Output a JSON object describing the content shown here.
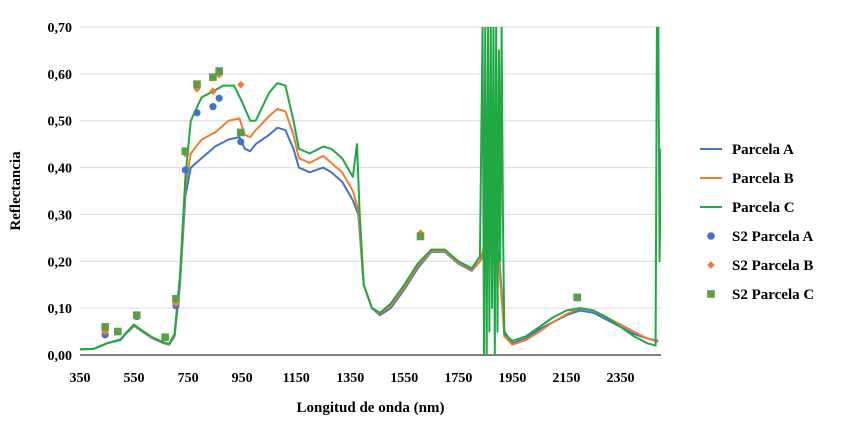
{
  "chart_data": {
    "type": "line",
    "title": "",
    "xlabel": "Longitud de onda (nm)",
    "ylabel": "Reflectancia",
    "xlim": [
      350,
      2500
    ],
    "ylim": [
      0,
      0.7
    ],
    "x_ticks": [
      350,
      550,
      750,
      950,
      1150,
      1350,
      1550,
      1750,
      1950,
      2150,
      2350
    ],
    "x_tick_labels": [
      "350",
      "550",
      "750",
      "950",
      "1150",
      "1350",
      "1550",
      "1750",
      "1950",
      "2150",
      "2350"
    ],
    "y_ticks": [
      0,
      0.1,
      0.2,
      0.3,
      0.4,
      0.5,
      0.6,
      0.7
    ],
    "y_tick_labels": [
      "0,00",
      "0,10",
      "0,20",
      "0,30",
      "0,40",
      "0,50",
      "0,60",
      "0,70"
    ],
    "grid": "horizontal",
    "legend_position": "right",
    "series": [
      {
        "name": "Parcela A",
        "kind": "line",
        "color": "#4472c4",
        "points": [
          [
            350,
            0.012
          ],
          [
            400,
            0.013
          ],
          [
            450,
            0.025
          ],
          [
            500,
            0.032
          ],
          [
            520,
            0.045
          ],
          [
            550,
            0.062
          ],
          [
            580,
            0.05
          ],
          [
            620,
            0.035
          ],
          [
            660,
            0.025
          ],
          [
            680,
            0.022
          ],
          [
            700,
            0.04
          ],
          [
            720,
            0.15
          ],
          [
            740,
            0.34
          ],
          [
            760,
            0.4
          ],
          [
            800,
            0.42
          ],
          [
            850,
            0.445
          ],
          [
            900,
            0.46
          ],
          [
            940,
            0.465
          ],
          [
            960,
            0.44
          ],
          [
            980,
            0.435
          ],
          [
            1000,
            0.45
          ],
          [
            1050,
            0.47
          ],
          [
            1080,
            0.485
          ],
          [
            1110,
            0.48
          ],
          [
            1140,
            0.44
          ],
          [
            1160,
            0.4
          ],
          [
            1200,
            0.39
          ],
          [
            1250,
            0.4
          ],
          [
            1280,
            0.39
          ],
          [
            1320,
            0.37
          ],
          [
            1360,
            0.33
          ],
          [
            1380,
            0.3
          ],
          [
            1400,
            0.15
          ],
          [
            1430,
            0.1
          ],
          [
            1460,
            0.085
          ],
          [
            1500,
            0.1
          ],
          [
            1550,
            0.14
          ],
          [
            1600,
            0.185
          ],
          [
            1650,
            0.22
          ],
          [
            1700,
            0.22
          ],
          [
            1750,
            0.195
          ],
          [
            1800,
            0.18
          ],
          [
            1830,
            0.2
          ],
          [
            1850,
            0.22
          ],
          [
            1900,
            0.22
          ],
          [
            1920,
            0.05
          ],
          [
            1950,
            0.025
          ],
          [
            2000,
            0.035
          ],
          [
            2050,
            0.055
          ],
          [
            2100,
            0.07
          ],
          [
            2150,
            0.085
          ],
          [
            2200,
            0.095
          ],
          [
            2250,
            0.09
          ],
          [
            2300,
            0.075
          ],
          [
            2350,
            0.06
          ],
          [
            2400,
            0.045
          ],
          [
            2450,
            0.035
          ],
          [
            2490,
            0.03
          ]
        ]
      },
      {
        "name": "Parcela B",
        "kind": "line",
        "color": "#ed7d31",
        "points": [
          [
            350,
            0.012
          ],
          [
            400,
            0.013
          ],
          [
            450,
            0.025
          ],
          [
            500,
            0.033
          ],
          [
            520,
            0.046
          ],
          [
            550,
            0.063
          ],
          [
            580,
            0.051
          ],
          [
            620,
            0.036
          ],
          [
            660,
            0.026
          ],
          [
            680,
            0.023
          ],
          [
            700,
            0.042
          ],
          [
            720,
            0.16
          ],
          [
            740,
            0.36
          ],
          [
            760,
            0.43
          ],
          [
            800,
            0.46
          ],
          [
            850,
            0.475
          ],
          [
            900,
            0.5
          ],
          [
            940,
            0.505
          ],
          [
            960,
            0.47
          ],
          [
            980,
            0.465
          ],
          [
            1000,
            0.48
          ],
          [
            1050,
            0.51
          ],
          [
            1080,
            0.525
          ],
          [
            1110,
            0.52
          ],
          [
            1140,
            0.47
          ],
          [
            1160,
            0.42
          ],
          [
            1200,
            0.41
          ],
          [
            1250,
            0.425
          ],
          [
            1280,
            0.41
          ],
          [
            1320,
            0.39
          ],
          [
            1360,
            0.35
          ],
          [
            1380,
            0.31
          ],
          [
            1400,
            0.15
          ],
          [
            1430,
            0.1
          ],
          [
            1460,
            0.088
          ],
          [
            1500,
            0.105
          ],
          [
            1550,
            0.145
          ],
          [
            1600,
            0.19
          ],
          [
            1650,
            0.222
          ],
          [
            1700,
            0.222
          ],
          [
            1750,
            0.197
          ],
          [
            1800,
            0.182
          ],
          [
            1830,
            0.2
          ],
          [
            1850,
            0.24
          ],
          [
            1870,
            0.25
          ],
          [
            1900,
            0.2
          ],
          [
            1920,
            0.04
          ],
          [
            1950,
            0.022
          ],
          [
            2000,
            0.032
          ],
          [
            2050,
            0.05
          ],
          [
            2100,
            0.07
          ],
          [
            2150,
            0.087
          ],
          [
            2200,
            0.1
          ],
          [
            2250,
            0.095
          ],
          [
            2300,
            0.08
          ],
          [
            2350,
            0.065
          ],
          [
            2400,
            0.05
          ],
          [
            2450,
            0.035
          ],
          [
            2490,
            0.028
          ]
        ]
      },
      {
        "name": "Parcela C",
        "kind": "line",
        "color": "#1fa843",
        "points": [
          [
            350,
            0.012
          ],
          [
            400,
            0.013
          ],
          [
            450,
            0.025
          ],
          [
            500,
            0.033
          ],
          [
            520,
            0.047
          ],
          [
            550,
            0.065
          ],
          [
            580,
            0.052
          ],
          [
            620,
            0.037
          ],
          [
            660,
            0.027
          ],
          [
            680,
            0.024
          ],
          [
            700,
            0.045
          ],
          [
            720,
            0.17
          ],
          [
            740,
            0.38
          ],
          [
            760,
            0.5
          ],
          [
            800,
            0.55
          ],
          [
            850,
            0.565
          ],
          [
            880,
            0.575
          ],
          [
            920,
            0.575
          ],
          [
            950,
            0.54
          ],
          [
            980,
            0.5
          ],
          [
            1000,
            0.5
          ],
          [
            1050,
            0.56
          ],
          [
            1080,
            0.58
          ],
          [
            1110,
            0.575
          ],
          [
            1140,
            0.5
          ],
          [
            1160,
            0.44
          ],
          [
            1200,
            0.43
          ],
          [
            1250,
            0.445
          ],
          [
            1280,
            0.44
          ],
          [
            1320,
            0.42
          ],
          [
            1360,
            0.38
          ],
          [
            1375,
            0.45
          ],
          [
            1385,
            0.3
          ],
          [
            1400,
            0.15
          ],
          [
            1430,
            0.1
          ],
          [
            1460,
            0.09
          ],
          [
            1500,
            0.11
          ],
          [
            1550,
            0.15
          ],
          [
            1600,
            0.195
          ],
          [
            1650,
            0.225
          ],
          [
            1700,
            0.225
          ],
          [
            1750,
            0.2
          ],
          [
            1800,
            0.185
          ],
          [
            1830,
            0.21
          ],
          [
            1840,
            0.7
          ],
          [
            1845,
            0.0
          ],
          [
            1850,
            0.7
          ],
          [
            1855,
            0.0
          ],
          [
            1860,
            0.7
          ],
          [
            1865,
            0.05
          ],
          [
            1870,
            0.7
          ],
          [
            1875,
            0.1
          ],
          [
            1880,
            0.7
          ],
          [
            1885,
            0.0
          ],
          [
            1890,
            0.7
          ],
          [
            1895,
            0.05
          ],
          [
            1900,
            0.65
          ],
          [
            1905,
            0.2
          ],
          [
            1910,
            0.7
          ],
          [
            1915,
            0.3
          ],
          [
            1920,
            0.045
          ],
          [
            1950,
            0.03
          ],
          [
            2000,
            0.04
          ],
          [
            2050,
            0.06
          ],
          [
            2100,
            0.08
          ],
          [
            2150,
            0.095
          ],
          [
            2200,
            0.1
          ],
          [
            2250,
            0.095
          ],
          [
            2300,
            0.08
          ],
          [
            2350,
            0.06
          ],
          [
            2400,
            0.04
          ],
          [
            2450,
            0.025
          ],
          [
            2480,
            0.02
          ],
          [
            2485,
            0.7
          ],
          [
            2490,
            0.7
          ],
          [
            2495,
            0.2
          ],
          [
            2500,
            0.44
          ]
        ]
      },
      {
        "name": "S2 Parcela A",
        "kind": "scatter",
        "marker": "circle",
        "color": "#4472c4",
        "points": [
          [
            443,
            0.043
          ],
          [
            560,
            0.082
          ],
          [
            705,
            0.105
          ],
          [
            740,
            0.395
          ],
          [
            783,
            0.517
          ],
          [
            842,
            0.53
          ],
          [
            865,
            0.548
          ],
          [
            945,
            0.455
          ]
        ]
      },
      {
        "name": "S2 Parcela B",
        "kind": "scatter",
        "marker": "diamond",
        "color": "#ed7d31",
        "points": [
          [
            443,
            0.05
          ],
          [
            490,
            0.05
          ],
          [
            560,
            0.083
          ],
          [
            665,
            0.038
          ],
          [
            705,
            0.11
          ],
          [
            740,
            0.43
          ],
          [
            783,
            0.568
          ],
          [
            842,
            0.563
          ],
          [
            865,
            0.598
          ],
          [
            945,
            0.577
          ],
          [
            1610,
            0.26
          ],
          [
            2190,
            0.122
          ]
        ]
      },
      {
        "name": "S2 Parcela C",
        "kind": "scatter",
        "marker": "square",
        "color": "#5a9e47",
        "points": [
          [
            443,
            0.06
          ],
          [
            490,
            0.05
          ],
          [
            560,
            0.085
          ],
          [
            665,
            0.038
          ],
          [
            705,
            0.12
          ],
          [
            740,
            0.435
          ],
          [
            783,
            0.578
          ],
          [
            842,
            0.593
          ],
          [
            865,
            0.606
          ],
          [
            945,
            0.475
          ],
          [
            1610,
            0.253
          ],
          [
            2190,
            0.123
          ]
        ]
      }
    ]
  }
}
